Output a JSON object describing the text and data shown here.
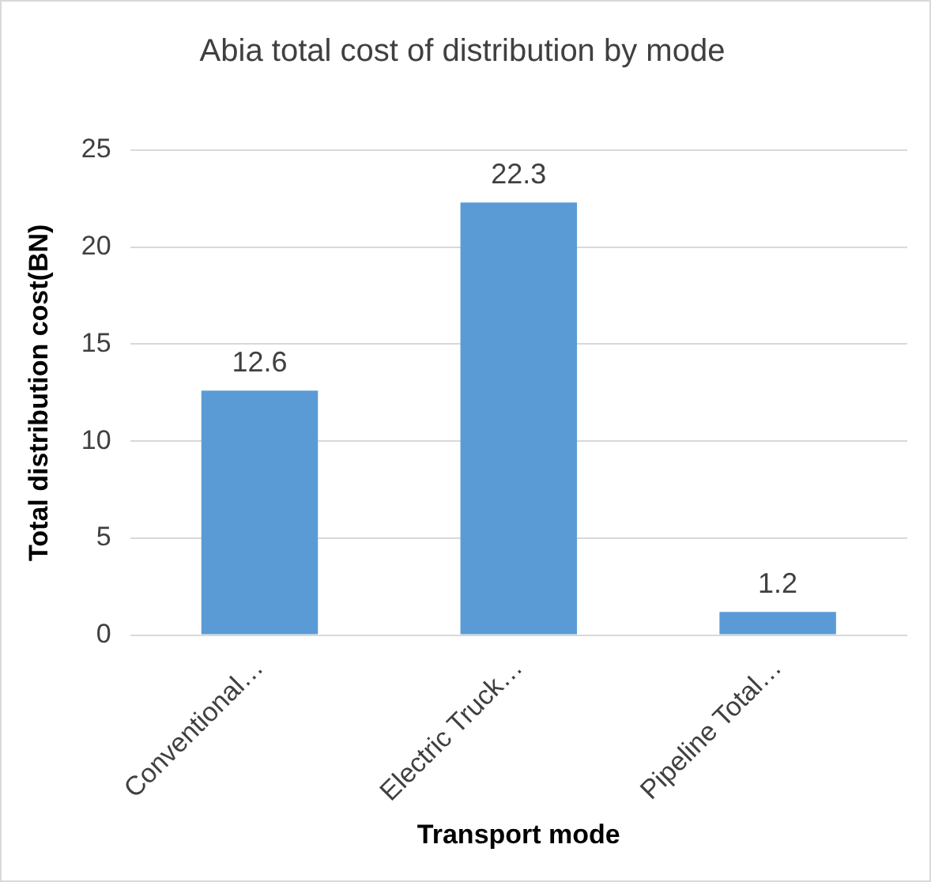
{
  "chart_data": {
    "type": "bar",
    "title": "Abia total cost of distribution by mode",
    "xlabel": "Transport mode",
    "ylabel": "Total distribution cost(BN)",
    "categories": [
      "Conventional…",
      "Electric Truck…",
      "Pipeline Total…"
    ],
    "values": [
      12.6,
      22.3,
      1.2
    ],
    "color": "#5b9bd5",
    "ylim": [
      0,
      25
    ],
    "yticks": [
      0,
      5,
      10,
      15,
      20,
      25
    ],
    "grid": "y",
    "legend": false,
    "data_labels": true
  }
}
